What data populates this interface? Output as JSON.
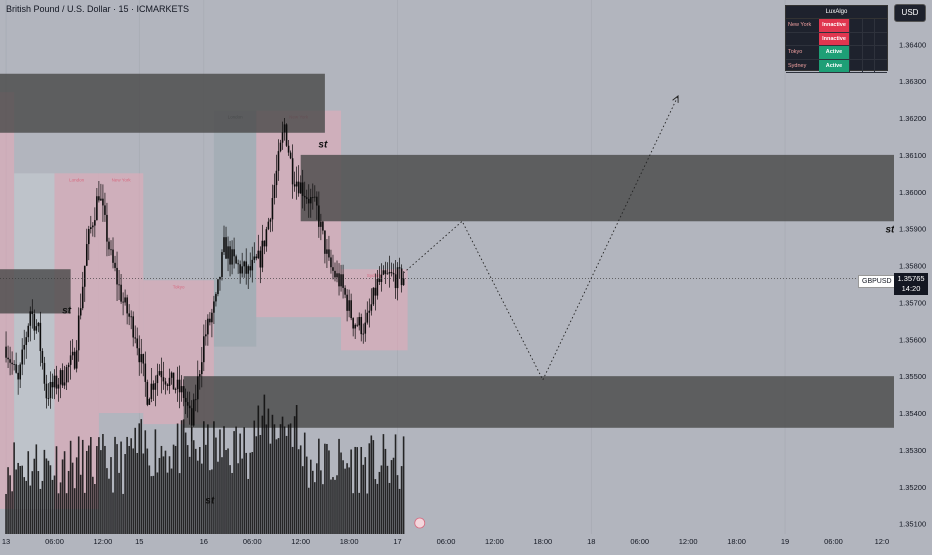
{
  "header": {
    "title": "British Pound / U.S. Dollar · 15 · ICMARKETS",
    "currency_button": "USD"
  },
  "luxalgo": {
    "title": "LuxAlgo",
    "rows": [
      {
        "name": "New York",
        "status": "Innactive",
        "state": "inactive"
      },
      {
        "name": "",
        "status": "Innactive",
        "state": "inactive"
      },
      {
        "name": "Tokyo",
        "status": "Active",
        "state": "active"
      },
      {
        "name": "Sydney",
        "status": "Active",
        "state": "active"
      }
    ]
  },
  "price_tag": {
    "symbol": "GBPUSD",
    "price": "1.35765",
    "countdown": "14:20"
  },
  "colors": {
    "background": "#b2b5be",
    "candle": "#0c0c0c",
    "zone": "#4a4a4a",
    "session_pink": "#e8a9b8",
    "session_gray": "#c9cdd3",
    "session_blue": "#9aa7ae"
  },
  "chart_data": {
    "type": "candlestick",
    "y_axis": {
      "range": [
        1.35072,
        1.3652
      ],
      "ticks": [
        1.351,
        1.352,
        1.353,
        1.354,
        1.355,
        1.356,
        1.357,
        1.358,
        1.359,
        1.36,
        1.361,
        1.362,
        1.363,
        1.364
      ],
      "tick_labels": [
        "1.35100",
        "1.35200",
        "1.35300",
        "1.35400",
        "1.35500",
        "1.35600",
        "1.35700",
        "1.35800",
        "1.35900",
        "1.36000",
        "1.36100",
        "1.36200",
        "1.36300",
        "1.36400"
      ]
    },
    "x_axis": {
      "ticks": [
        {
          "label": "13",
          "t": 0
        },
        {
          "label": "06:00",
          "t": 24
        },
        {
          "label": "12:00",
          "t": 48
        },
        {
          "label": "15",
          "t": 66
        },
        {
          "label": "16",
          "t": 98
        },
        {
          "label": "06:00",
          "t": 122
        },
        {
          "label": "12:00",
          "t": 146
        },
        {
          "label": "18:00",
          "t": 170
        },
        {
          "label": "17",
          "t": 194
        },
        {
          "label": "06:00",
          "t": 218
        },
        {
          "label": "12:00",
          "t": 242
        },
        {
          "label": "18:00",
          "t": 266
        },
        {
          "label": "18",
          "t": 290
        },
        {
          "label": "06:00",
          "t": 314
        },
        {
          "label": "12:00",
          "t": 338
        },
        {
          "label": "18:00",
          "t": 362
        },
        {
          "label": "19",
          "t": 386
        },
        {
          "label": "06:00",
          "t": 410
        },
        {
          "label": "12:0",
          "t": 434
        }
      ],
      "t_range": [
        -3,
        440
      ]
    },
    "last_price": 1.35765,
    "current_t": 197,
    "close_path": [
      [
        0,
        1.3558
      ],
      [
        6,
        1.3548
      ],
      [
        12,
        1.3568
      ],
      [
        16,
        1.3562
      ],
      [
        20,
        1.3545
      ],
      [
        28,
        1.355
      ],
      [
        34,
        1.3555
      ],
      [
        40,
        1.3585
      ],
      [
        46,
        1.36
      ],
      [
        52,
        1.3582
      ],
      [
        58,
        1.357
      ],
      [
        64,
        1.3562
      ],
      [
        70,
        1.3545
      ],
      [
        76,
        1.3552
      ],
      [
        82,
        1.3548
      ],
      [
        88,
        1.3545
      ],
      [
        92,
        1.3537
      ],
      [
        98,
        1.356
      ],
      [
        104,
        1.357
      ],
      [
        108,
        1.3585
      ],
      [
        114,
        1.358
      ],
      [
        120,
        1.3578
      ],
      [
        126,
        1.3582
      ],
      [
        130,
        1.3592
      ],
      [
        134,
        1.3605
      ],
      [
        138,
        1.3618
      ],
      [
        142,
        1.3605
      ],
      [
        148,
        1.36
      ],
      [
        154,
        1.3595
      ],
      [
        160,
        1.358
      ],
      [
        166,
        1.3575
      ],
      [
        172,
        1.3565
      ],
      [
        178,
        1.3563
      ],
      [
        184,
        1.3575
      ],
      [
        190,
        1.3577
      ],
      [
        196,
        1.35765
      ]
    ],
    "zones": [
      {
        "t1": -3,
        "t2": 158,
        "top": 1.3632,
        "bottom": 1.3616
      },
      {
        "t1": -3,
        "t2": 32,
        "top": 1.3579,
        "bottom": 1.3567
      },
      {
        "t1": 146,
        "t2": 440,
        "top": 1.361,
        "bottom": 1.3592
      },
      {
        "t1": 88,
        "t2": 440,
        "top": 1.355,
        "bottom": 1.3536
      }
    ],
    "sessions": [
      {
        "name": "",
        "color": "pink",
        "t1": -3,
        "t2": 4,
        "top": 1.3627,
        "bottom": 1.3514
      },
      {
        "name": "",
        "color": "gray",
        "t1": 4,
        "t2": 24,
        "top": 1.3605,
        "bottom": 1.3514
      },
      {
        "name": "London",
        "color": "pink",
        "t1": 24,
        "t2": 46,
        "top": 1.3605,
        "bottom": 1.3514
      },
      {
        "name": "New York",
        "color": "pink",
        "t1": 46,
        "t2": 68,
        "top": 1.3605,
        "bottom": 1.354
      },
      {
        "name": "Tokyo",
        "color": "pink",
        "t1": 68,
        "t2": 103,
        "top": 1.3576,
        "bottom": 1.3537
      },
      {
        "name": "London",
        "color": "blue",
        "t1": 103,
        "t2": 124,
        "top": 1.3622,
        "bottom": 1.3558
      },
      {
        "name": "New York",
        "color": "pink",
        "t1": 124,
        "t2": 166,
        "top": 1.3622,
        "bottom": 1.3566
      },
      {
        "name": "Sydney",
        "color": "pink",
        "t1": 166,
        "t2": 199,
        "top": 1.3579,
        "bottom": 1.3557
      }
    ],
    "annotations": [
      {
        "text": "st",
        "t": 157,
        "price": 1.3612
      },
      {
        "text": "st",
        "t": 30,
        "price": 1.3567
      },
      {
        "text": "st",
        "t": 438,
        "price": 1.3589
      },
      {
        "text": "st",
        "t": 101,
        "price": 1.35155
      }
    ],
    "projection_path": [
      [
        197,
        1.3578
      ],
      [
        226,
        1.3592
      ],
      [
        266,
        1.3549
      ],
      [
        333,
        1.3626
      ]
    ]
  }
}
